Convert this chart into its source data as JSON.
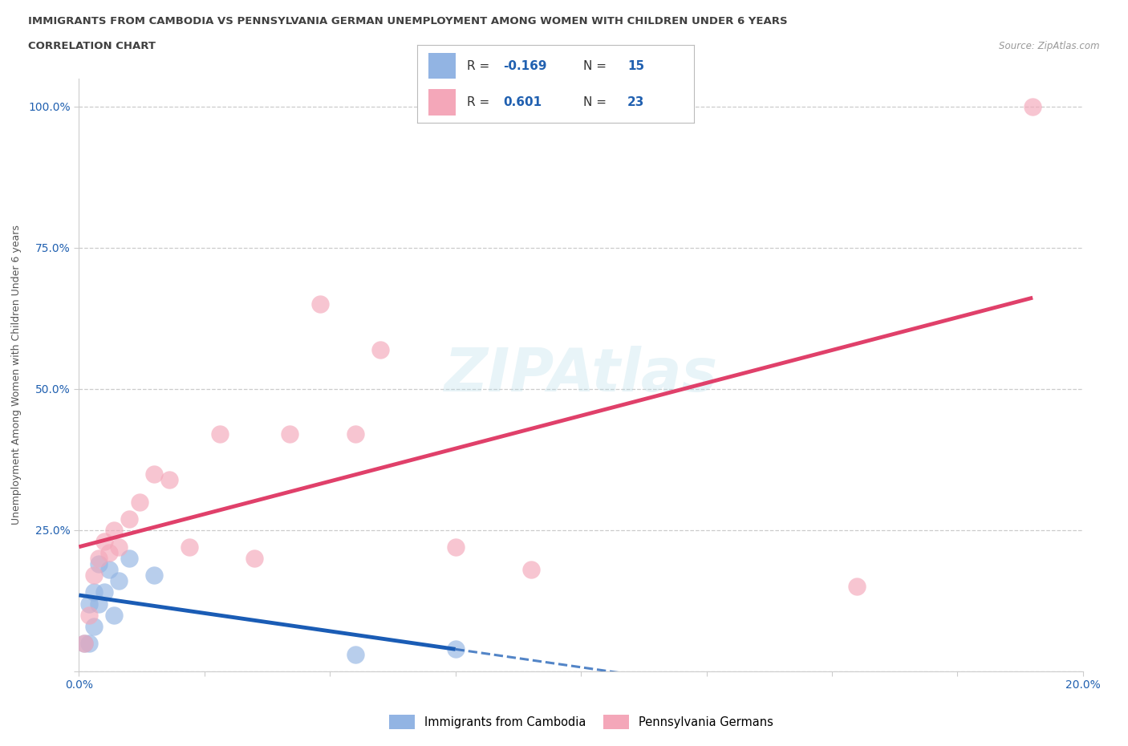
{
  "title_line1": "IMMIGRANTS FROM CAMBODIA VS PENNSYLVANIA GERMAN UNEMPLOYMENT AMONG WOMEN WITH CHILDREN UNDER 6 YEARS",
  "title_line2": "CORRELATION CHART",
  "source": "Source: ZipAtlas.com",
  "ylabel": "Unemployment Among Women with Children Under 6 years",
  "blue_label": "Immigrants from Cambodia",
  "pink_label": "Pennsylvania Germans",
  "blue_R": -0.169,
  "blue_N": 15,
  "pink_R": 0.601,
  "pink_N": 23,
  "blue_color": "#92b4e3",
  "pink_color": "#f4a7b9",
  "trend_blue_color": "#1a5cb5",
  "trend_pink_color": "#e0406a",
  "blue_scatter_x": [
    0.001,
    0.002,
    0.002,
    0.003,
    0.003,
    0.004,
    0.004,
    0.005,
    0.006,
    0.007,
    0.008,
    0.01,
    0.015,
    0.055,
    0.075
  ],
  "blue_scatter_y": [
    0.05,
    0.12,
    0.05,
    0.08,
    0.14,
    0.12,
    0.19,
    0.14,
    0.18,
    0.1,
    0.16,
    0.2,
    0.17,
    0.03,
    0.04
  ],
  "pink_scatter_x": [
    0.001,
    0.002,
    0.003,
    0.004,
    0.005,
    0.006,
    0.007,
    0.008,
    0.01,
    0.012,
    0.015,
    0.018,
    0.022,
    0.028,
    0.035,
    0.042,
    0.048,
    0.055,
    0.06,
    0.075,
    0.09,
    0.155,
    0.19
  ],
  "pink_scatter_y": [
    0.05,
    0.1,
    0.17,
    0.2,
    0.23,
    0.21,
    0.25,
    0.22,
    0.27,
    0.3,
    0.35,
    0.34,
    0.22,
    0.42,
    0.2,
    0.42,
    0.65,
    0.42,
    0.57,
    0.22,
    0.18,
    0.15,
    1.0
  ],
  "xlim": [
    0.0,
    0.2
  ],
  "ylim": [
    0.0,
    1.05
  ],
  "ytick_positions": [
    0.0,
    0.25,
    0.5,
    0.75,
    1.0
  ],
  "ytick_labels": [
    "",
    "25.0%",
    "50.0%",
    "75.0%",
    "100.0%"
  ],
  "xtick_positions": [
    0.0,
    0.025,
    0.05,
    0.075,
    0.1,
    0.125,
    0.15,
    0.175,
    0.2
  ],
  "xtick_labels": [
    "0.0%",
    "",
    "",
    "",
    "",
    "",
    "",
    "",
    "20.0%"
  ],
  "background_color": "#ffffff",
  "grid_color": "#cccccc",
  "title_color": "#404040",
  "tick_color": "#2060b0",
  "source_color": "#999999",
  "ylabel_color": "#555555"
}
